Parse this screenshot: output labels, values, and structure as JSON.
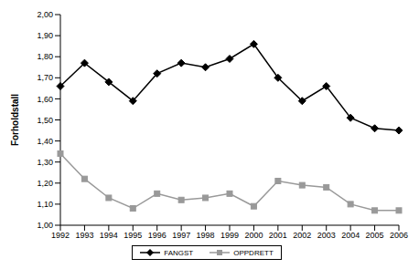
{
  "chart_data": {
    "type": "line",
    "y_label": "Forholdstall",
    "categories": [
      "1992",
      "1993",
      "1994",
      "1995",
      "1996",
      "1997",
      "1998",
      "1999",
      "2000",
      "2001",
      "2002",
      "2003",
      "2004",
      "2005",
      "2006"
    ],
    "series": [
      {
        "name": "FANGST",
        "color": "#000000",
        "marker": "diamond",
        "values": [
          1.66,
          1.77,
          1.68,
          1.59,
          1.72,
          1.77,
          1.75,
          1.79,
          1.86,
          1.7,
          1.59,
          1.66,
          1.51,
          1.46,
          1.45
        ]
      },
      {
        "name": "OPPDRETT",
        "color": "#999999",
        "marker": "square",
        "values": [
          1.34,
          1.22,
          1.13,
          1.08,
          1.15,
          1.12,
          1.13,
          1.15,
          1.09,
          1.21,
          1.19,
          1.18,
          1.1,
          1.07,
          1.07
        ]
      }
    ],
    "ylim": [
      1.0,
      2.0
    ],
    "yticks": [
      {
        "value": 1.0,
        "label": "1,00"
      },
      {
        "value": 1.1,
        "label": "1,10"
      },
      {
        "value": 1.2,
        "label": "1,20"
      },
      {
        "value": 1.3,
        "label": "1,30"
      },
      {
        "value": 1.4,
        "label": "1,40"
      },
      {
        "value": 1.5,
        "label": "1,50"
      },
      {
        "value": 1.6,
        "label": "1,60"
      },
      {
        "value": 1.7,
        "label": "1,70"
      },
      {
        "value": 1.8,
        "label": "1,80"
      },
      {
        "value": 1.9,
        "label": "1,90"
      },
      {
        "value": 2.0,
        "label": "2,00"
      }
    ],
    "grid": false,
    "legend": "bottom"
  }
}
